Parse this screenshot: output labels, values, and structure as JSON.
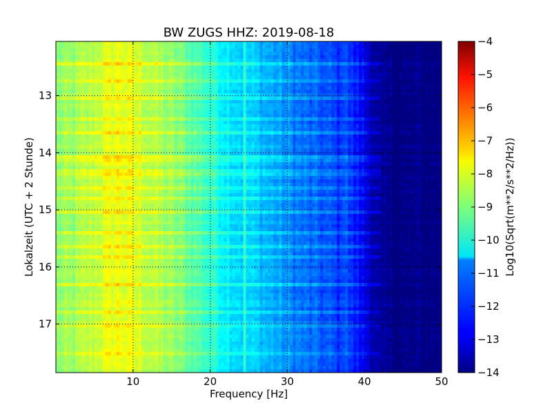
{
  "chart_data": {
    "type": "heatmap",
    "title": "BW ZUGS HHZ: 2019-08-18",
    "xlabel": "Frequency [Hz]",
    "ylabel": "Lokalzeit (UTC + 2 Stunde)",
    "xlim": [
      0,
      50
    ],
    "ylim": [
      17.85,
      12.05
    ],
    "y_inverted": true,
    "x_ticks": [
      10,
      20,
      30,
      40,
      50
    ],
    "x_tick_labels": [
      "10",
      "20",
      "30",
      "40",
      "50"
    ],
    "y_ticks": [
      13,
      14,
      15,
      16,
      17
    ],
    "y_tick_labels": [
      "13",
      "14",
      "15",
      "16",
      "17"
    ],
    "grid": true,
    "colormap": "jet",
    "colorbar": {
      "label": "Log10(Sqrt(m**2/s**2/Hz))",
      "range": [
        -14,
        -4
      ],
      "ticks": [
        -14,
        -13,
        -12,
        -11,
        -10,
        -9,
        -8,
        -7,
        -6,
        -5,
        -4
      ],
      "tick_labels": [
        "−14",
        "−13",
        "−12",
        "−11",
        "−10",
        "−9",
        "−8",
        "−7",
        "−6",
        "−5",
        "−4"
      ]
    },
    "x": [
      0,
      2,
      4,
      6,
      8,
      10,
      12,
      14,
      16,
      18,
      20,
      22,
      24,
      26,
      28,
      30,
      32,
      34,
      36,
      37.5,
      38,
      40,
      41,
      42,
      44,
      46,
      48,
      50
    ],
    "mean_spectrum": [
      -8.9,
      -8.8,
      -8.5,
      -8.2,
      -7.9,
      -8.1,
      -8.4,
      -8.7,
      -9.0,
      -9.4,
      -9.8,
      -10.3,
      -10.6,
      -10.8,
      -11.1,
      -11.4,
      -11.7,
      -11.9,
      -12.1,
      -12.5,
      -12.3,
      -12.9,
      -13.4,
      -13.9,
      -14.0,
      -14.0,
      -14.0,
      -14.0
    ],
    "spectral_lines_hz": [
      24.6,
      37.2,
      37.8
    ],
    "banded_times": [
      12.45,
      12.75,
      13.05,
      13.4,
      13.65,
      14.1,
      14.35,
      14.6,
      14.8,
      15.05,
      15.4,
      15.65,
      15.85,
      16.3,
      16.8,
      17.05,
      17.5
    ]
  }
}
